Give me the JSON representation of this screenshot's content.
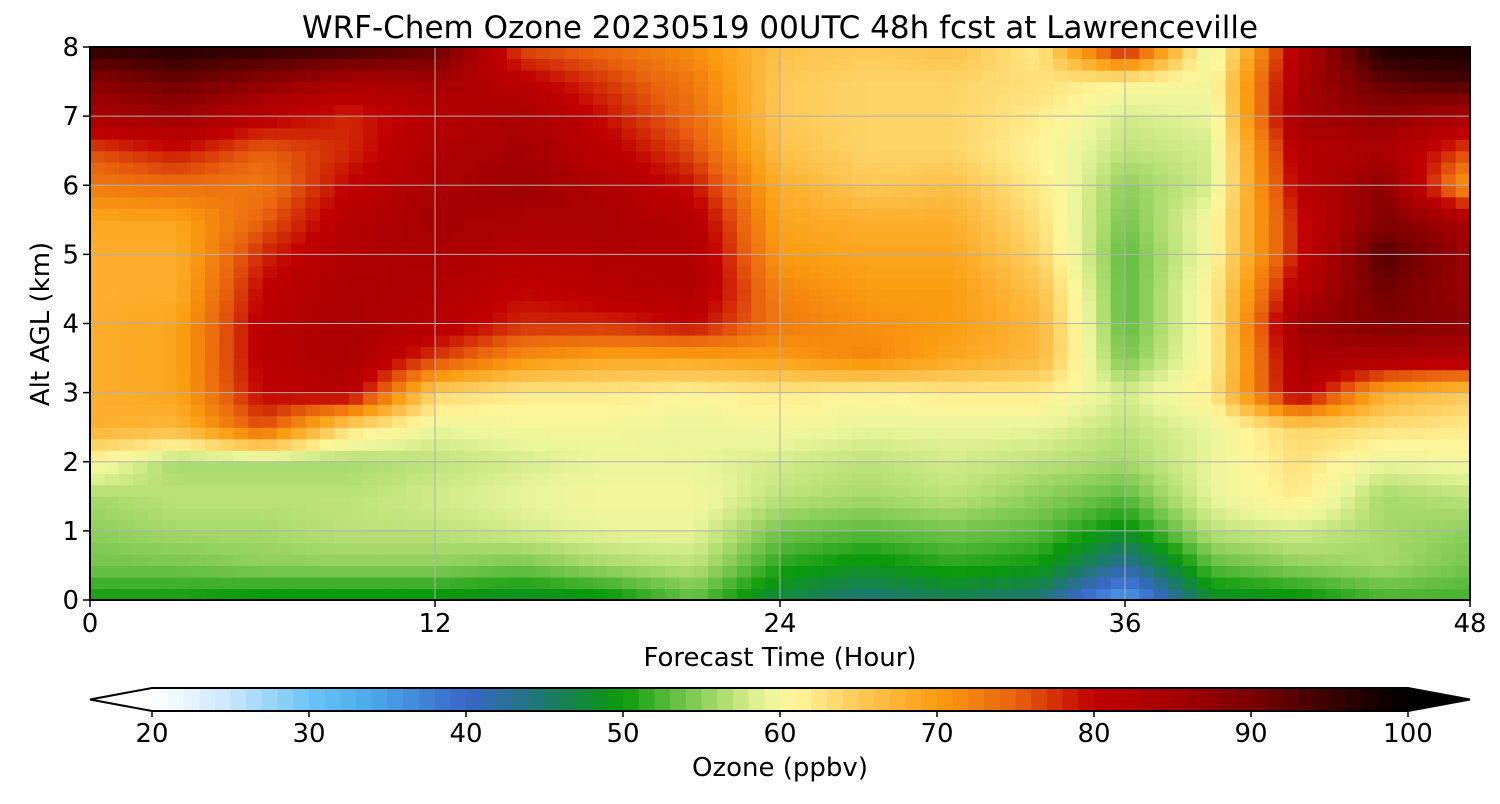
{
  "chart_data": {
    "type": "heatmap",
    "title": "WRF-Chem Ozone  20230519 00UTC 48h fcst at Lawrenceville",
    "xlabel": "Forecast Time (Hour)",
    "ylabel": "Alt AGL (km)",
    "xlim": [
      0,
      48
    ],
    "ylim": [
      0,
      8
    ],
    "x_ticks": [
      0,
      12,
      24,
      36,
      48
    ],
    "y_ticks": [
      0,
      1,
      2,
      3,
      4,
      5,
      6,
      7,
      8
    ],
    "grid": true,
    "x": [
      0,
      3,
      6,
      9,
      12,
      15,
      18,
      21,
      24,
      27,
      30,
      33,
      36,
      39,
      42,
      45,
      48
    ],
    "y": [
      0,
      0.5,
      1,
      1.5,
      2,
      2.5,
      3,
      3.5,
      4,
      4.5,
      5,
      5.5,
      6,
      6.5,
      7,
      7.5,
      8
    ],
    "z_rows": [
      [
        50,
        50,
        49,
        49,
        49,
        48,
        49,
        53,
        47,
        44,
        46,
        44,
        34,
        48,
        49,
        52,
        52
      ],
      [
        54,
        54,
        55,
        55,
        55,
        54,
        56,
        57,
        51,
        49,
        51,
        50,
        42,
        53,
        55,
        56,
        54
      ],
      [
        55,
        56,
        56,
        57,
        57,
        58,
        59,
        59,
        54,
        53,
        54,
        53,
        49,
        57,
        58,
        56,
        55
      ],
      [
        56,
        57,
        57,
        57,
        58,
        59,
        60,
        60,
        57,
        56,
        57,
        55,
        53,
        59,
        62,
        56,
        57
      ],
      [
        61,
        56,
        56,
        56,
        57,
        58,
        59,
        59,
        58,
        57,
        58,
        57,
        56,
        59,
        63,
        59,
        60
      ],
      [
        68,
        67,
        76,
        63,
        59,
        60,
        60,
        59,
        60,
        59,
        59,
        59,
        57,
        59,
        64,
        63,
        62
      ],
      [
        68,
        69,
        80,
        82,
        64,
        62,
        62,
        61,
        62,
        61,
        62,
        62,
        58,
        62,
        83,
        68,
        65
      ],
      [
        68,
        69,
        81,
        84,
        77,
        71,
        69,
        69,
        70,
        72,
        69,
        67,
        54,
        61,
        84,
        84,
        83
      ],
      [
        68,
        69,
        81,
        84,
        82,
        78,
        78,
        80,
        73,
        71,
        70,
        67,
        53,
        61,
        86,
        89,
        88
      ],
      [
        68,
        68,
        80,
        84,
        83,
        80,
        82,
        83,
        72,
        70,
        70,
        66,
        53,
        61,
        82,
        91,
        86
      ],
      [
        68,
        68,
        78,
        83,
        84,
        82,
        83,
        83,
        70,
        69,
        69,
        64,
        53,
        60,
        79,
        93,
        86
      ],
      [
        69,
        69,
        75,
        82,
        85,
        84,
        84,
        82,
        69,
        68,
        68,
        63,
        54,
        60,
        79,
        89,
        84
      ],
      [
        73,
        74,
        73,
        80,
        84,
        86,
        83,
        79,
        68,
        65,
        66,
        62,
        55,
        58,
        81,
        88,
        69
      ],
      [
        76,
        79,
        75,
        78,
        83,
        85,
        81,
        76,
        66,
        64,
        64,
        61,
        57,
        58,
        82,
        84,
        76
      ],
      [
        84,
        86,
        81,
        78,
        82,
        84,
        79,
        74,
        65,
        64,
        64,
        62,
        58,
        59,
        85,
        87,
        84
      ],
      [
        88,
        91,
        88,
        84,
        85,
        81,
        77,
        73,
        65,
        64,
        64,
        63,
        61,
        60,
        84,
        92,
        94
      ],
      [
        96,
        97,
        96,
        95,
        92,
        76,
        74,
        71,
        66,
        65,
        66,
        62,
        81,
        58,
        82,
        98,
        98
      ]
    ],
    "colorbar": {
      "label": "Ozone  (ppbv)",
      "min": 20,
      "max": 100,
      "ticks": [
        20,
        30,
        40,
        50,
        60,
        70,
        80,
        90,
        100
      ],
      "extend": "both",
      "stops": [
        {
          "v": 20,
          "c": "#ffffff"
        },
        {
          "v": 25,
          "c": "#c8e6fa"
        },
        {
          "v": 30,
          "c": "#6cc5f5"
        },
        {
          "v": 34,
          "c": "#4aa8ea"
        },
        {
          "v": 40,
          "c": "#3a66c8"
        },
        {
          "v": 45,
          "c": "#1c7a6c"
        },
        {
          "v": 50,
          "c": "#0a9a0a"
        },
        {
          "v": 53,
          "c": "#5cbb3c"
        },
        {
          "v": 56,
          "c": "#a6d96a"
        },
        {
          "v": 59,
          "c": "#eaf59a"
        },
        {
          "v": 61,
          "c": "#fff59a"
        },
        {
          "v": 65,
          "c": "#fdc957"
        },
        {
          "v": 70,
          "c": "#fb9c10"
        },
        {
          "v": 75,
          "c": "#e8620e"
        },
        {
          "v": 80,
          "c": "#c00000"
        },
        {
          "v": 85,
          "c": "#a50000"
        },
        {
          "v": 90,
          "c": "#7a0000"
        },
        {
          "v": 95,
          "c": "#3a0000"
        },
        {
          "v": 100,
          "c": "#000000"
        }
      ]
    }
  }
}
